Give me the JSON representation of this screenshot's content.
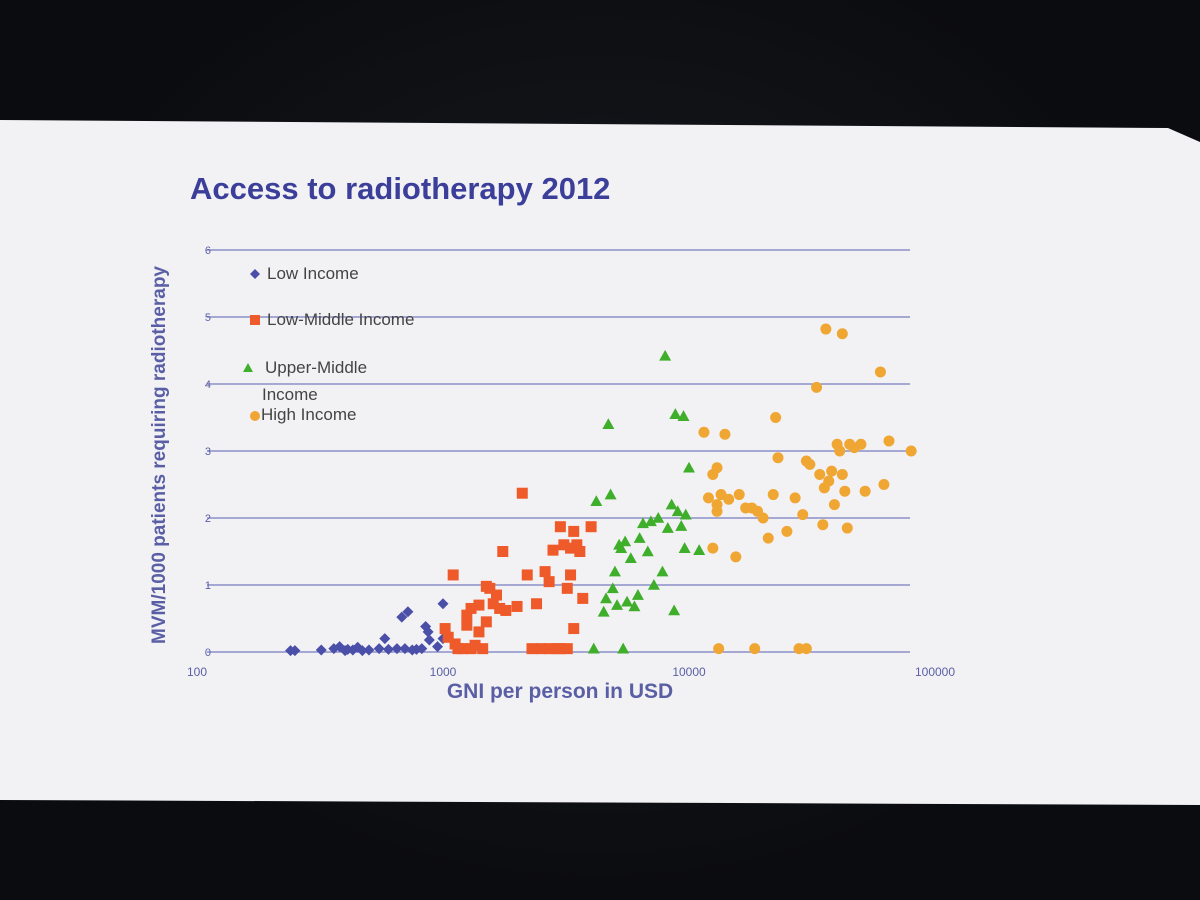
{
  "slide": {
    "title": "Access to radiotherapy 2012",
    "colors": {
      "title": "#3b3f9a",
      "axis_text": "#5a5fa5",
      "grid": "#7a7cc0",
      "background": "#f3f3f6"
    }
  },
  "chart_data": {
    "type": "scatter",
    "xlabel": "GNI per person in USD",
    "ylabel": "MVM/1000 patients requiring radiotherapy",
    "x_scale": "log",
    "xlim": [
      100,
      100000
    ],
    "ylim": [
      0,
      6
    ],
    "x_ticks": [
      {
        "value": 100,
        "label": "100"
      },
      {
        "value": 1000,
        "label": "1000"
      },
      {
        "value": 10000,
        "label": "10000"
      },
      {
        "value": 100000,
        "label": "100000"
      }
    ],
    "y_ticks": [
      {
        "value": 0,
        "label": "0"
      },
      {
        "value": 1,
        "label": "1"
      },
      {
        "value": 2,
        "label": "2"
      },
      {
        "value": 3,
        "label": "3"
      },
      {
        "value": 4,
        "label": "4"
      },
      {
        "value": 5,
        "label": "5"
      },
      {
        "value": 6,
        "label": "6"
      }
    ],
    "grid": "horizontal",
    "legend_position": "top-left",
    "series": [
      {
        "name": "Low Income",
        "marker": "diamond",
        "color": "#4a4fa8",
        "points": [
          [
            240,
            0.02
          ],
          [
            250,
            0.02
          ],
          [
            320,
            0.03
          ],
          [
            360,
            0.05
          ],
          [
            380,
            0.08
          ],
          [
            400,
            0.02
          ],
          [
            410,
            0.04
          ],
          [
            430,
            0.03
          ],
          [
            450,
            0.07
          ],
          [
            470,
            0.02
          ],
          [
            500,
            0.03
          ],
          [
            550,
            0.05
          ],
          [
            580,
            0.2
          ],
          [
            600,
            0.04
          ],
          [
            650,
            0.05
          ],
          [
            680,
            0.52
          ],
          [
            720,
            0.6
          ],
          [
            700,
            0.05
          ],
          [
            750,
            0.03
          ],
          [
            780,
            0.04
          ],
          [
            820,
            0.05
          ],
          [
            850,
            0.38
          ],
          [
            870,
            0.3
          ],
          [
            880,
            0.18
          ],
          [
            950,
            0.08
          ],
          [
            1000,
            0.72
          ],
          [
            1000,
            0.2
          ]
        ]
      },
      {
        "name": "Low-Middle Income",
        "marker": "square",
        "color": "#ef5a2a",
        "points": [
          [
            1020,
            0.35
          ],
          [
            1050,
            0.22
          ],
          [
            1100,
            1.15
          ],
          [
            1120,
            0.12
          ],
          [
            1150,
            0.05
          ],
          [
            1200,
            0.05
          ],
          [
            1250,
            0.4
          ],
          [
            1250,
            0.55
          ],
          [
            1300,
            0.65
          ],
          [
            1300,
            0.05
          ],
          [
            1350,
            0.1
          ],
          [
            1400,
            0.7
          ],
          [
            1400,
            0.3
          ],
          [
            1450,
            0.05
          ],
          [
            1500,
            0.98
          ],
          [
            1500,
            0.45
          ],
          [
            1550,
            0.95
          ],
          [
            1600,
            0.72
          ],
          [
            1650,
            0.85
          ],
          [
            1700,
            0.65
          ],
          [
            1750,
            1.5
          ],
          [
            1800,
            0.62
          ],
          [
            2000,
            0.68
          ],
          [
            2100,
            2.37
          ],
          [
            2200,
            1.15
          ],
          [
            2300,
            0.05
          ],
          [
            2400,
            0.72
          ],
          [
            2500,
            0.05
          ],
          [
            2600,
            1.2
          ],
          [
            2700,
            1.05
          ],
          [
            2800,
            1.52
          ],
          [
            2900,
            0.05
          ],
          [
            3000,
            1.87
          ],
          [
            3100,
            1.6
          ],
          [
            3200,
            0.95
          ],
          [
            3200,
            0.05
          ],
          [
            3300,
            1.15
          ],
          [
            3300,
            1.55
          ],
          [
            3400,
            1.8
          ],
          [
            3400,
            0.35
          ],
          [
            3500,
            1.6
          ],
          [
            3600,
            1.5
          ],
          [
            3700,
            0.8
          ],
          [
            4000,
            1.87
          ],
          [
            3000,
            0.05
          ],
          [
            2700,
            0.05
          ]
        ]
      },
      {
        "name": "Upper-Middle Income",
        "marker": "triangle",
        "color": "#3fae2a",
        "points": [
          [
            4100,
            0.05
          ],
          [
            4200,
            2.25
          ],
          [
            4500,
            0.6
          ],
          [
            4600,
            0.8
          ],
          [
            4700,
            3.4
          ],
          [
            4800,
            2.35
          ],
          [
            4900,
            0.95
          ],
          [
            5000,
            1.2
          ],
          [
            5100,
            0.7
          ],
          [
            5200,
            1.6
          ],
          [
            5300,
            1.55
          ],
          [
            5400,
            0.05
          ],
          [
            5500,
            1.65
          ],
          [
            5600,
            0.75
          ],
          [
            5800,
            1.4
          ],
          [
            6000,
            0.68
          ],
          [
            6200,
            0.85
          ],
          [
            6300,
            1.7
          ],
          [
            6500,
            1.92
          ],
          [
            6800,
            1.5
          ],
          [
            7000,
            1.95
          ],
          [
            7200,
            1.0
          ],
          [
            7500,
            2.0
          ],
          [
            7800,
            1.2
          ],
          [
            8000,
            4.42
          ],
          [
            8200,
            1.85
          ],
          [
            8500,
            2.2
          ],
          [
            8700,
            0.62
          ],
          [
            8800,
            3.55
          ],
          [
            9000,
            2.1
          ],
          [
            9300,
            1.88
          ],
          [
            9500,
            3.52
          ],
          [
            9600,
            1.55
          ],
          [
            9700,
            2.05
          ],
          [
            10000,
            2.75
          ],
          [
            11000,
            1.52
          ]
        ]
      },
      {
        "name": "High Income",
        "marker": "circle",
        "color": "#f0a632",
        "points": [
          [
            11500,
            3.28
          ],
          [
            12000,
            2.3
          ],
          [
            12500,
            1.55
          ],
          [
            12500,
            2.65
          ],
          [
            13000,
            2.75
          ],
          [
            13000,
            2.2
          ],
          [
            13000,
            2.1
          ],
          [
            13200,
            0.05
          ],
          [
            13500,
            2.35
          ],
          [
            14000,
            3.25
          ],
          [
            14500,
            2.28
          ],
          [
            15500,
            1.42
          ],
          [
            16000,
            2.35
          ],
          [
            17000,
            2.15
          ],
          [
            18000,
            2.15
          ],
          [
            18500,
            0.05
          ],
          [
            19000,
            2.1
          ],
          [
            20000,
            2.0
          ],
          [
            21000,
            1.7
          ],
          [
            22000,
            2.35
          ],
          [
            22500,
            3.5
          ],
          [
            23000,
            2.9
          ],
          [
            25000,
            1.8
          ],
          [
            27000,
            2.3
          ],
          [
            28000,
            0.05
          ],
          [
            29000,
            2.05
          ],
          [
            30000,
            2.85
          ],
          [
            30000,
            0.05
          ],
          [
            31000,
            2.8
          ],
          [
            33000,
            3.95
          ],
          [
            34000,
            2.65
          ],
          [
            35000,
            1.9
          ],
          [
            35500,
            2.45
          ],
          [
            36000,
            4.82
          ],
          [
            37000,
            2.55
          ],
          [
            38000,
            2.7
          ],
          [
            39000,
            2.2
          ],
          [
            40000,
            3.1
          ],
          [
            41000,
            3.0
          ],
          [
            42000,
            4.75
          ],
          [
            42000,
            2.65
          ],
          [
            43000,
            2.4
          ],
          [
            44000,
            1.85
          ],
          [
            45000,
            3.1
          ],
          [
            47000,
            3.05
          ],
          [
            50000,
            3.1
          ],
          [
            52000,
            2.4
          ],
          [
            60000,
            4.18
          ],
          [
            62000,
            2.5
          ],
          [
            65000,
            3.15
          ],
          [
            80000,
            3.0
          ]
        ]
      }
    ]
  }
}
